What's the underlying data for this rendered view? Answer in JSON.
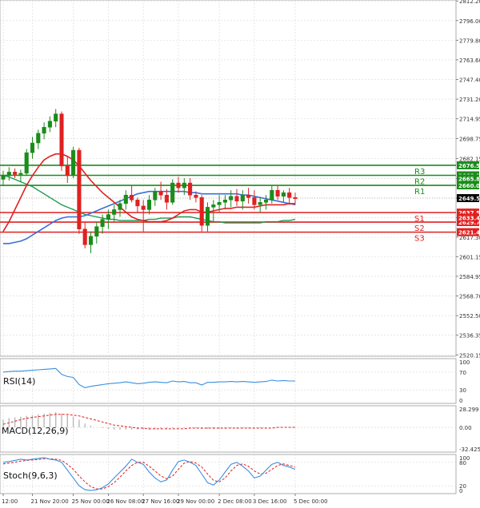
{
  "chart_data": [
    {
      "type": "candlestick",
      "panel": "price",
      "y_ticks": [
        "2812.20",
        "2796.00",
        "2779.80",
        "2763.60",
        "2747.40",
        "2731.20",
        "2714.95",
        "2698.75",
        "2682.15",
        "2665.80",
        "2649.60",
        "2633.40",
        "2617.30",
        "2601.15",
        "2584.95",
        "2568.70",
        "2552.50",
        "2536.35",
        "2520.15"
      ],
      "y_tick_values": [
        2812.2,
        2796.0,
        2779.8,
        2763.6,
        2747.4,
        2731.2,
        2714.95,
        2698.75,
        2682.15,
        2665.8,
        2649.6,
        2633.4,
        2617.3,
        2601.15,
        2584.95,
        2568.7,
        2552.5,
        2536.35,
        2520.15
      ],
      "ylim": [
        2519.0,
        2813.0
      ],
      "x_labels": [
        "12:00",
        "21 Nov 20:00",
        "25 Nov 00:00",
        "26 Nov 08:00",
        "27 Nov 16:00",
        "29 Nov 00:00",
        "2 Dec 08:00",
        "3 Dec 16:00",
        "5 Dec 00:00"
      ],
      "x_label_index": [
        0,
        5,
        12,
        18,
        24,
        30,
        37,
        43,
        50
      ],
      "candles": [
        [
          2665,
          2672,
          2660,
          2668
        ],
        [
          2668,
          2675,
          2664,
          2671
        ],
        [
          2671,
          2674,
          2666,
          2669
        ],
        [
          2669,
          2673,
          2663,
          2670
        ],
        [
          2670,
          2690,
          2668,
          2687
        ],
        [
          2687,
          2700,
          2682,
          2695
        ],
        [
          2695,
          2706,
          2690,
          2703
        ],
        [
          2703,
          2712,
          2698,
          2708
        ],
        [
          2708,
          2717,
          2704,
          2713
        ],
        [
          2713,
          2723,
          2708,
          2719
        ],
        [
          2719,
          2721,
          2672,
          2676
        ],
        [
          2676,
          2684,
          2662,
          2668
        ],
        [
          2668,
          2692,
          2666,
          2689
        ],
        [
          2689,
          2691,
          2620,
          2624
        ],
        [
          2624,
          2630,
          2608,
          2611
        ],
        [
          2611,
          2622,
          2604,
          2618
        ],
        [
          2618,
          2630,
          2612,
          2626
        ],
        [
          2626,
          2636,
          2620,
          2632
        ],
        [
          2632,
          2640,
          2624,
          2636
        ],
        [
          2636,
          2644,
          2630,
          2640
        ],
        [
          2640,
          2648,
          2634,
          2645
        ],
        [
          2645,
          2656,
          2640,
          2652
        ],
        [
          2652,
          2660,
          2646,
          2648
        ],
        [
          2648,
          2650,
          2638,
          2643
        ],
        [
          2643,
          2648,
          2622,
          2640
        ],
        [
          2640,
          2652,
          2636,
          2648
        ],
        [
          2648,
          2658,
          2643,
          2655
        ],
        [
          2655,
          2663,
          2648,
          2652
        ],
        [
          2652,
          2657,
          2640,
          2646
        ],
        [
          2646,
          2665,
          2644,
          2662
        ],
        [
          2662,
          2667,
          2654,
          2658
        ],
        [
          2658,
          2666,
          2652,
          2662
        ],
        [
          2662,
          2666,
          2648,
          2652
        ],
        [
          2652,
          2655,
          2646,
          2650
        ],
        [
          2650,
          2652,
          2622,
          2627
        ],
        [
          2627,
          2646,
          2622,
          2642
        ],
        [
          2642,
          2648,
          2630,
          2644
        ],
        [
          2644,
          2652,
          2638,
          2646
        ],
        [
          2646,
          2652,
          2640,
          2648
        ],
        [
          2648,
          2656,
          2642,
          2651
        ],
        [
          2651,
          2657,
          2643,
          2647
        ],
        [
          2647,
          2656,
          2640,
          2652
        ],
        [
          2652,
          2658,
          2645,
          2650
        ],
        [
          2650,
          2656,
          2640,
          2644
        ],
        [
          2644,
          2650,
          2638,
          2646
        ],
        [
          2646,
          2652,
          2640,
          2648
        ],
        [
          2648,
          2660,
          2645,
          2656
        ],
        [
          2656,
          2660,
          2648,
          2651
        ],
        [
          2651,
          2656,
          2646,
          2654
        ],
        [
          2654,
          2658,
          2644,
          2650
        ],
        [
          2650,
          2654,
          2644,
          2649
        ]
      ],
      "ma_red": [
        2622,
        2630,
        2640,
        2650,
        2660,
        2668,
        2675,
        2681,
        2684,
        2686,
        2686,
        2684,
        2681,
        2676,
        2670,
        2664,
        2659,
        2654,
        2650,
        2646,
        2642,
        2638,
        2634,
        2632,
        2631,
        2630,
        2630,
        2630,
        2631,
        2633,
        2636,
        2639,
        2640,
        2640,
        2638,
        2638,
        2639,
        2640,
        2641,
        2641,
        2642,
        2642,
        2642,
        2642,
        2643,
        2644,
        2644,
        2644,
        2644,
        2645,
        2645
      ],
      "ma_blue": [
        2612,
        2612,
        2613,
        2614,
        2616,
        2619,
        2622,
        2625,
        2628,
        2631,
        2633,
        2634,
        2634,
        2634,
        2635,
        2637,
        2639,
        2641,
        2643,
        2645,
        2647,
        2649,
        2651,
        2653,
        2654,
        2655,
        2655,
        2655,
        2655,
        2655,
        2655,
        2655,
        2654,
        2654,
        2653,
        2653,
        2653,
        2653,
        2653,
        2653,
        2653,
        2652,
        2652,
        2651,
        2650,
        2649,
        2648,
        2647,
        2646,
        2645,
        2644
      ],
      "ma_green": [
        2668,
        2667,
        2665,
        2663,
        2661,
        2659,
        2656,
        2653,
        2650,
        2647,
        2644,
        2642,
        2640,
        2638,
        2636,
        2635,
        2634,
        2633,
        2632,
        2632,
        2631,
        2631,
        2631,
        2631,
        2631,
        2632,
        2632,
        2633,
        2633,
        2633,
        2634,
        2634,
        2634,
        2633,
        2632,
        2631,
        2630,
        2630,
        2629,
        2629,
        2629,
        2629,
        2629,
        2629,
        2629,
        2630,
        2630,
        2630,
        2631,
        2631,
        2632
      ],
      "levels": [
        {
          "name": "R3",
          "value": 2676.57,
          "label": "2676.57",
          "color": "#1a8c1a"
        },
        {
          "name": "R2",
          "value": 2668.3,
          "label": "2668.30",
          "color": "#1a8c1a"
        },
        {
          "name": "R1",
          "value": 2660.03,
          "label": "2660.03",
          "color": "#1a8c1a"
        },
        {
          "name": "S1",
          "value": 2637.57,
          "label": "2637.57",
          "color": "#e02020"
        },
        {
          "name": "S2",
          "value": 2629.7,
          "label": "2629.70",
          "color": "#e02020"
        },
        {
          "name": "S3",
          "value": 2621.43,
          "label": "2621.43",
          "color": "#e02020"
        }
      ],
      "level_tags": [
        "R3",
        "R2",
        "R1",
        "S1",
        "S2",
        "S3"
      ],
      "extra_price_labels": [
        {
          "value": 2665.8,
          "label": "2665.80",
          "bg": "#1a8c1a"
        },
        {
          "value": 2633.4,
          "label": "2633.40",
          "bg": "#e02020"
        }
      ],
      "current_price": {
        "value": 2649.5,
        "label": "2649.50",
        "bg": "#000000"
      },
      "colors": {
        "up": "#1a8c1a",
        "down": "#e02020",
        "ma_red": "#e02020",
        "ma_blue": "#3a6fd8",
        "ma_green": "#1a9a50"
      }
    },
    {
      "type": "line",
      "panel": "rsi",
      "label": "RSI(14)",
      "y_ticks": [
        "100",
        "70",
        "30",
        "0"
      ],
      "y_tick_values": [
        100,
        70,
        30,
        0
      ],
      "ylim": [
        0,
        100
      ],
      "values": [
        70,
        71,
        72,
        72,
        73,
        74,
        75,
        76,
        77,
        78,
        65,
        60,
        58,
        42,
        35,
        38,
        40,
        42,
        44,
        45,
        46,
        48,
        46,
        44,
        45,
        47,
        48,
        47,
        46,
        50,
        48,
        49,
        46,
        46,
        41,
        47,
        47,
        48,
        48,
        49,
        48,
        49,
        48,
        47,
        48,
        49,
        52,
        50,
        51,
        50,
        50
      ],
      "color": "#3a8fe0"
    },
    {
      "type": "histogram",
      "panel": "macd",
      "label": "MACD(12,26,9)",
      "y_ticks": [
        "28.299",
        "0.00",
        "-32.425"
      ],
      "y_tick_values": [
        28.299,
        0,
        -32.425
      ],
      "ylim": [
        -32.425,
        28.299
      ],
      "histogram": [
        10,
        12,
        13,
        14,
        15,
        16,
        17,
        18,
        19,
        20,
        18,
        16,
        14,
        10,
        5,
        2,
        0,
        -1,
        -2,
        -3,
        -3,
        -3,
        -3,
        -3,
        -3,
        -3,
        -2,
        -2,
        -2,
        -1,
        -1,
        -1,
        -1,
        -1,
        -2,
        -2,
        -2,
        -2,
        -2,
        -1,
        -1,
        -1,
        -1,
        -1,
        -1,
        -1,
        0,
        0,
        0,
        0,
        0
      ],
      "signal": [
        4,
        6,
        8,
        10,
        12,
        13,
        14,
        15,
        16,
        17,
        17,
        17,
        16,
        15,
        13,
        11,
        9,
        7,
        5,
        3,
        2,
        1,
        0,
        -1,
        -1,
        -2,
        -2,
        -2,
        -2,
        -2,
        -2,
        -2,
        -1,
        -1,
        -1,
        -1,
        -1,
        -1,
        -1,
        -1,
        -1,
        -1,
        -1,
        -1,
        -1,
        -1,
        -1,
        0,
        0,
        0,
        0
      ],
      "hist_color": "#b8b8b8",
      "signal_color": "#e02020"
    },
    {
      "type": "line",
      "panel": "stoch",
      "label": "Stoch(9,6,3)",
      "y_ticks": [
        "100",
        "80",
        "20",
        "0"
      ],
      "y_tick_values": [
        100,
        80,
        20,
        0
      ],
      "ylim": [
        0,
        100
      ],
      "k": [
        80,
        82,
        85,
        88,
        86,
        88,
        90,
        92,
        88,
        86,
        80,
        60,
        40,
        20,
        10,
        8,
        10,
        15,
        25,
        40,
        55,
        70,
        88,
        80,
        75,
        55,
        40,
        30,
        35,
        60,
        82,
        86,
        80,
        72,
        50,
        28,
        22,
        35,
        55,
        75,
        80,
        70,
        58,
        40,
        45,
        60,
        75,
        80,
        72,
        68,
        62
      ],
      "d": [
        76,
        78,
        80,
        83,
        85,
        86,
        87,
        89,
        89,
        88,
        85,
        75,
        62,
        45,
        30,
        18,
        12,
        12,
        18,
        28,
        42,
        58,
        72,
        80,
        80,
        70,
        58,
        45,
        38,
        45,
        62,
        78,
        82,
        78,
        68,
        50,
        34,
        30,
        40,
        58,
        72,
        76,
        70,
        58,
        50,
        52,
        62,
        72,
        76,
        72,
        68
      ],
      "k_color": "#3a8fe0",
      "d_color": "#e02020"
    }
  ]
}
